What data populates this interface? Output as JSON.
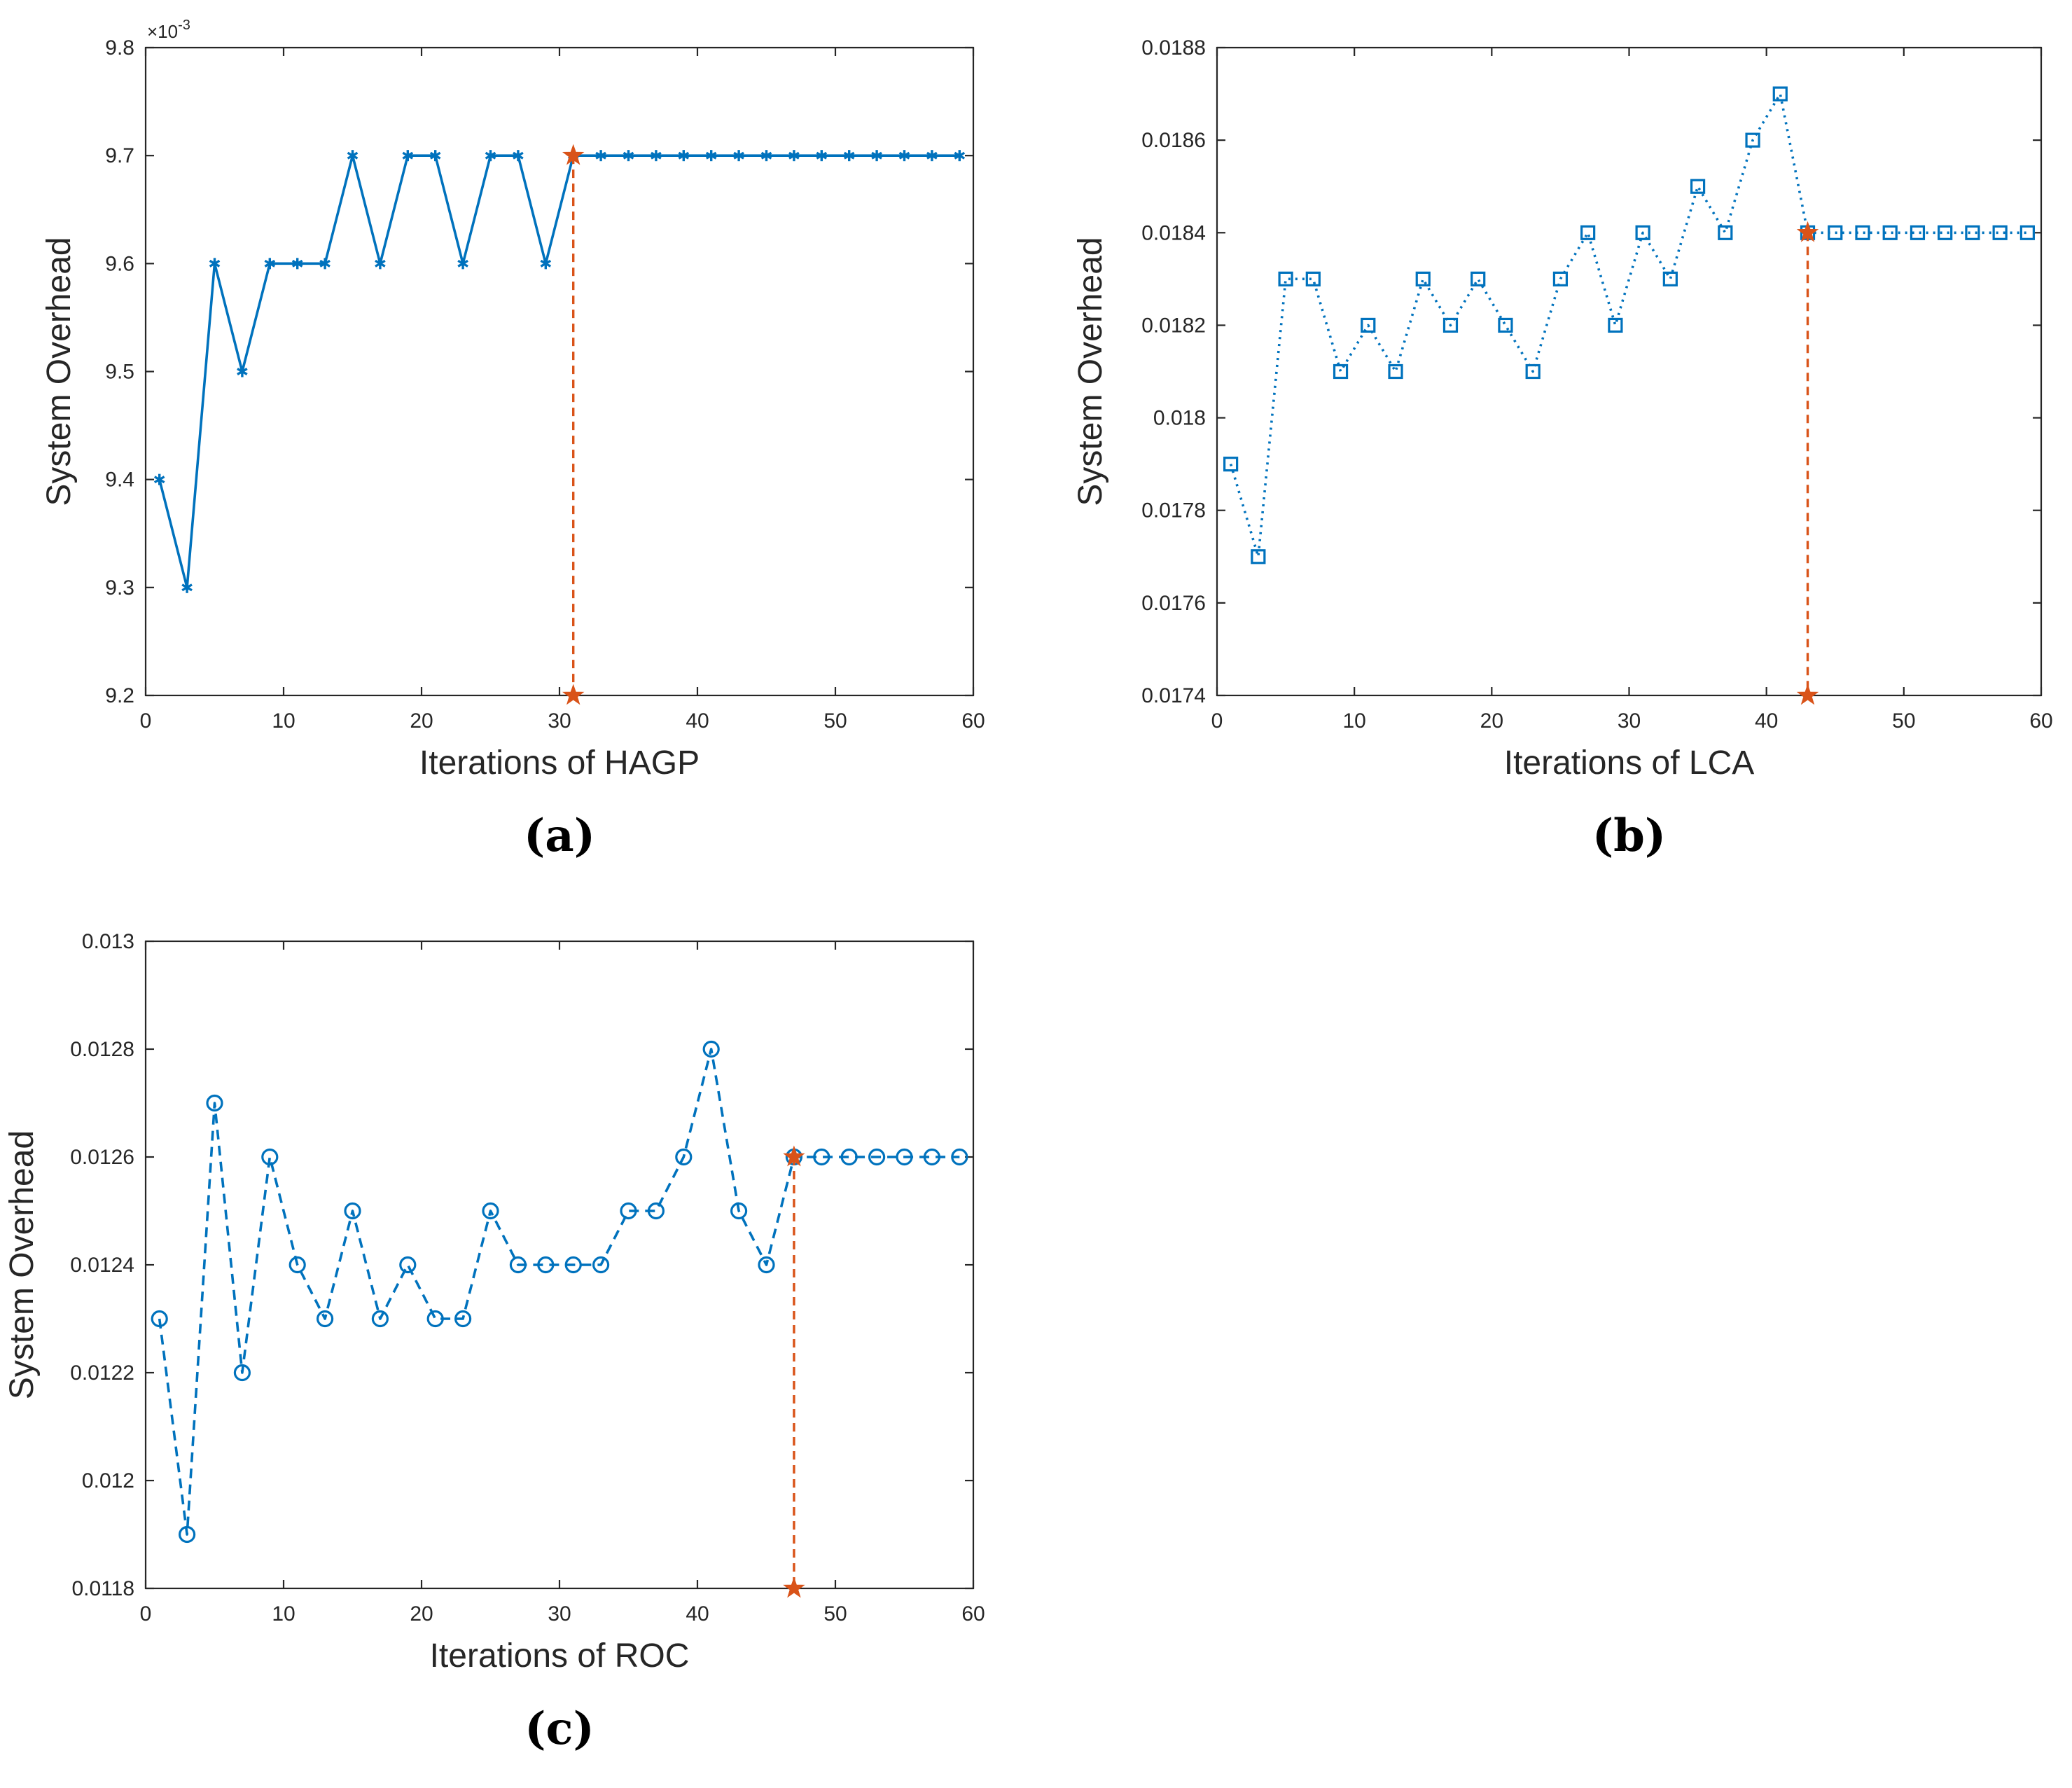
{
  "colors": {
    "series": "#0072BD",
    "marker_final": "#D95319",
    "axes": "#262626"
  },
  "chart_data": [
    {
      "type": "line",
      "panel_label": "(a)",
      "xlabel": "Iterations of HAGP",
      "ylabel": "System Overhead",
      "xlim": [
        0,
        60
      ],
      "ylim": [
        9.2,
        9.8
      ],
      "x_ticks": [
        0,
        10,
        20,
        30,
        40,
        50,
        60
      ],
      "x_tick_labels": [
        "0",
        "10",
        "20",
        "30",
        "40",
        "50",
        "60"
      ],
      "y_ticks": [
        9.2,
        9.3,
        9.4,
        9.5,
        9.6,
        9.7,
        9.8
      ],
      "y_tick_labels": [
        "9.2",
        "9.3",
        "9.4",
        "9.5",
        "9.6",
        "9.7",
        "9.8"
      ],
      "y_multiplier_base": "×10",
      "y_multiplier_exp": "-3",
      "grid": false,
      "line_style": "solid",
      "marker": "asterisk",
      "series": [
        {
          "name": "HAGP",
          "x": [
            1,
            3,
            5,
            7,
            9,
            11,
            13,
            15,
            17,
            19,
            21,
            23,
            25,
            27,
            29,
            31,
            33,
            35,
            37,
            39,
            41,
            43,
            45,
            47,
            49,
            51,
            53,
            55,
            57,
            59
          ],
          "values": [
            9.4,
            9.3,
            9.6,
            9.5,
            9.6,
            9.6,
            9.6,
            9.7,
            9.6,
            9.7,
            9.7,
            9.6,
            9.7,
            9.7,
            9.6,
            9.7,
            9.7,
            9.7,
            9.7,
            9.7,
            9.7,
            9.7,
            9.7,
            9.7,
            9.7,
            9.7,
            9.7,
            9.7,
            9.7,
            9.7
          ]
        }
      ],
      "convergence": {
        "x": 31,
        "y": 9.7,
        "y_bottom": 9.2
      }
    },
    {
      "type": "line",
      "panel_label": "(b)",
      "xlabel": "Iterations of LCA",
      "ylabel": "System Overhead",
      "xlim": [
        0,
        60
      ],
      "ylim": [
        0.0174,
        0.0188
      ],
      "x_ticks": [
        0,
        10,
        20,
        30,
        40,
        50,
        60
      ],
      "x_tick_labels": [
        "0",
        "10",
        "20",
        "30",
        "40",
        "50",
        "60"
      ],
      "y_ticks": [
        0.0174,
        0.0176,
        0.0178,
        0.018,
        0.0182,
        0.0184,
        0.0186,
        0.0188
      ],
      "y_tick_labels": [
        "0.0174",
        "0.0176",
        "0.0178",
        "0.018",
        "0.0182",
        "0.0184",
        "0.0186",
        "0.0188"
      ],
      "grid": false,
      "line_style": "dotted",
      "marker": "square",
      "series": [
        {
          "name": "LCA",
          "x": [
            1,
            3,
            5,
            7,
            9,
            11,
            13,
            15,
            17,
            19,
            21,
            23,
            25,
            27,
            29,
            31,
            33,
            35,
            37,
            39,
            41,
            43,
            45,
            47,
            49,
            51,
            53,
            55,
            57,
            59
          ],
          "values": [
            0.0179,
            0.0177,
            0.0183,
            0.0183,
            0.0181,
            0.0182,
            0.0181,
            0.0183,
            0.0182,
            0.0183,
            0.0182,
            0.0181,
            0.0183,
            0.0184,
            0.0182,
            0.0184,
            0.0183,
            0.0185,
            0.0184,
            0.0186,
            0.0187,
            0.0184,
            0.0184,
            0.0184,
            0.0184,
            0.0184,
            0.0184,
            0.0184,
            0.0184,
            0.0184
          ]
        }
      ],
      "convergence": {
        "x": 43,
        "y": 0.0184,
        "y_bottom": 0.0174
      }
    },
    {
      "type": "line",
      "panel_label": "(c)",
      "xlabel": "Iterations of ROC",
      "ylabel": "System Overhead",
      "xlim": [
        0,
        60
      ],
      "ylim": [
        0.0118,
        0.013
      ],
      "x_ticks": [
        0,
        10,
        20,
        30,
        40,
        50,
        60
      ],
      "x_tick_labels": [
        "0",
        "10",
        "20",
        "30",
        "40",
        "50",
        "60"
      ],
      "y_ticks": [
        0.0118,
        0.012,
        0.0122,
        0.0124,
        0.0126,
        0.0128,
        0.013
      ],
      "y_tick_labels": [
        "0.0118",
        "0.012",
        "0.0122",
        "0.0124",
        "0.0126",
        "0.0128",
        "0.013"
      ],
      "grid": false,
      "line_style": "dashed",
      "marker": "circle",
      "series": [
        {
          "name": "ROC",
          "x": [
            1,
            3,
            5,
            7,
            9,
            11,
            13,
            15,
            17,
            19,
            21,
            23,
            25,
            27,
            29,
            31,
            33,
            35,
            37,
            39,
            41,
            43,
            45,
            47,
            49,
            51,
            53,
            55,
            57,
            59
          ],
          "values": [
            0.0123,
            0.0119,
            0.0127,
            0.0122,
            0.0126,
            0.0124,
            0.0123,
            0.0125,
            0.0123,
            0.0124,
            0.0123,
            0.0123,
            0.0125,
            0.0124,
            0.0124,
            0.0124,
            0.0124,
            0.0125,
            0.0125,
            0.0126,
            0.0128,
            0.0125,
            0.0124,
            0.0126,
            0.0126,
            0.0126,
            0.0126,
            0.0126,
            0.0126,
            0.0126
          ]
        }
      ],
      "convergence": {
        "x": 47,
        "y": 0.0126,
        "y_bottom": 0.0118
      }
    }
  ]
}
